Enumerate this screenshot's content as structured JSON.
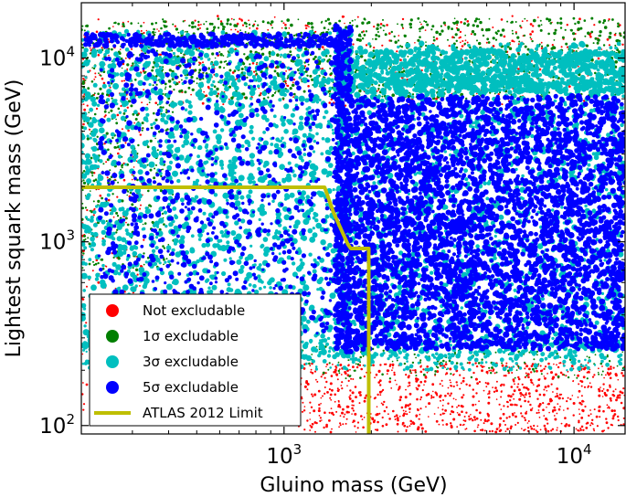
{
  "chart_data": {
    "type": "scatter",
    "xlabel": "Gluino mass (GeV)",
    "ylabel": "Lightest squark mass (GeV)",
    "x_scale": "log",
    "y_scale": "log",
    "xlim": [
      200,
      15000
    ],
    "ylim": [
      90,
      20000
    ],
    "grid": false,
    "legend_position": "lower-left",
    "x_ticks": [
      {
        "value": 1000,
        "base": "10",
        "exponent": "3"
      },
      {
        "value": 10000,
        "base": "10",
        "exponent": "4"
      }
    ],
    "y_ticks": [
      {
        "value": 100,
        "base": "10",
        "exponent": "2"
      },
      {
        "value": 1000,
        "base": "10",
        "exponent": "3"
      },
      {
        "value": 10000,
        "base": "10",
        "exponent": "4"
      }
    ],
    "series": [
      {
        "name": "Not excludable",
        "color": "#ff0000",
        "marker": "circle"
      },
      {
        "name": "1σ excludable",
        "color": "#007f00",
        "marker": "circle"
      },
      {
        "name": "3σ excludable",
        "color": "#00bfbf",
        "marker": "circle"
      },
      {
        "name": "5σ excludable",
        "color": "#0000ff",
        "marker": "circle"
      },
      {
        "name": "ATLAS 2012 Limit",
        "color": "#bfbf00",
        "marker": "line",
        "x": [
          200,
          1380,
          1480,
          1600,
          1660,
          1700,
          1960,
          1960
        ],
        "y": [
          1980,
          1980,
          1450,
          1100,
          970,
          920,
          920,
          90
        ]
      }
    ]
  }
}
